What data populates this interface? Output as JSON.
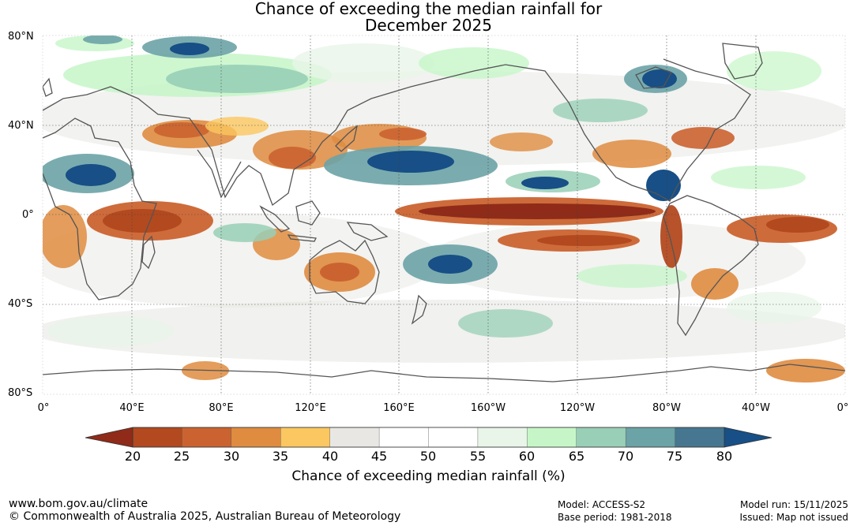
{
  "title": {
    "line1": "Chance of exceeding the median rainfall for",
    "line2": "December 2025"
  },
  "map": {
    "lat_labels": [
      "80°N",
      "40°N",
      "0°",
      "40°S",
      "80°S"
    ],
    "lon_labels": [
      "0°",
      "40°E",
      "80°E",
      "120°E",
      "160°E",
      "160°W",
      "120°W",
      "80°W",
      "40°W",
      "0°"
    ],
    "colors": {
      "ocean_background": "#ffffff",
      "coastline": "#555555",
      "gridline": "#444444"
    }
  },
  "colorbar": {
    "title": "Chance of exceeding median rainfall (%)",
    "ticks": [
      "20",
      "25",
      "30",
      "35",
      "40",
      "45",
      "50",
      "55",
      "60",
      "65",
      "70",
      "75",
      "80"
    ],
    "colors": [
      "#8f2b18",
      "#b3491f",
      "#cb6330",
      "#df8c40",
      "#fbc760",
      "#e8e7e4",
      "#ffffff",
      "#ffffff",
      "#e8f5e8",
      "#c6f6c8",
      "#98cfb6",
      "#6ba3a6",
      "#467690",
      "#174f86"
    ]
  },
  "footer": {
    "website": "www.bom.gov.au/climate",
    "copyright": "© Commonwealth of Australia 2025, Australian Bureau of Meteorology",
    "model": "Model: ACCESS-S2",
    "base_period": "Base period: 1981-2018",
    "model_run": "Model run: 15/11/2025",
    "issued": "Issued: Map not issued"
  }
}
